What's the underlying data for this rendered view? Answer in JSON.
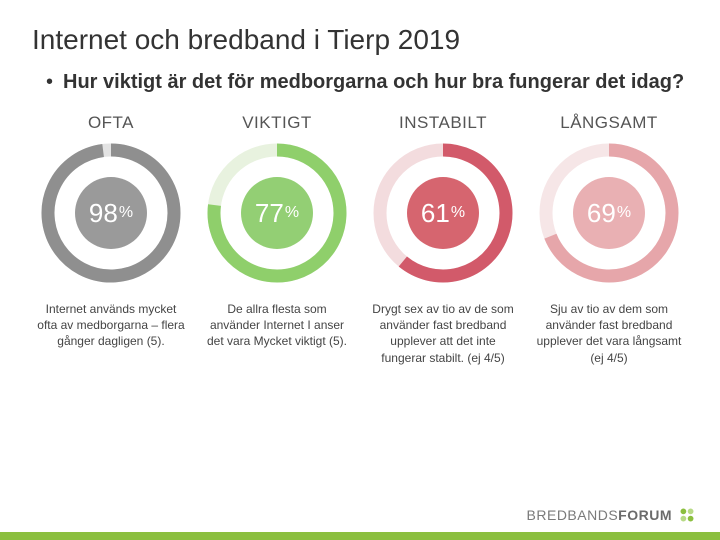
{
  "title": "Internet och bredband i Tierp 2019",
  "subtitle": "Hur viktigt är det för medborgarna och hur bra fungerar det idag?",
  "brand": {
    "part1": "BREDBANDS",
    "part2": "FORUM"
  },
  "layout": {
    "slide_w": 720,
    "slide_h": 540,
    "background_color": "#ffffff",
    "title_fontsize": 28,
    "title_color": "#333333",
    "subtitle_fontsize": 20,
    "subtitle_weight": 700,
    "caption_fontsize": 12,
    "caption_color": "#444444",
    "bottom_bar_color": "#8bbf3f",
    "bottom_bar_height": 8
  },
  "donut_defaults": {
    "outer_r": 63,
    "outer_stroke": 13,
    "inner_r": 36,
    "start_angle_deg": -90,
    "track_color": "#e9e9e9",
    "value_text_color": "#ffffff",
    "value_fontsize": 26,
    "pct_fontsize": 16
  },
  "charts": [
    {
      "label": "OFTA",
      "value": 98,
      "arc_color": "#8f8f8f",
      "inner_fill": "#9a9a9a",
      "track_color": "#e3e3e3",
      "caption": "Internet används mycket ofta av medborgarna – flera gånger dagligen (5)."
    },
    {
      "label": "VIKTIGT",
      "value": 77,
      "arc_color": "#8fcf6b",
      "inner_fill": "#93cf74",
      "track_color": "#e8f2df",
      "caption": "De allra flesta som använder Internet I anser det vara Mycket viktigt (5)."
    },
    {
      "label": "INSTABILT",
      "value": 61,
      "arc_color": "#d25a6a",
      "inner_fill": "#d6656f",
      "track_color": "#f3dcde",
      "caption": "Drygt sex av tio av de som använder fast bredband upplever att det inte fungerar stabilt. (ej 4/5)"
    },
    {
      "label": "LÅNGSAMT",
      "value": 69,
      "arc_color": "#e6a6aa",
      "inner_fill": "#e9b0b3",
      "track_color": "#f6e6e7",
      "caption": "Sju av tio av dem som använder fast bredband upplever det vara långsamt (ej 4/5)"
    }
  ]
}
